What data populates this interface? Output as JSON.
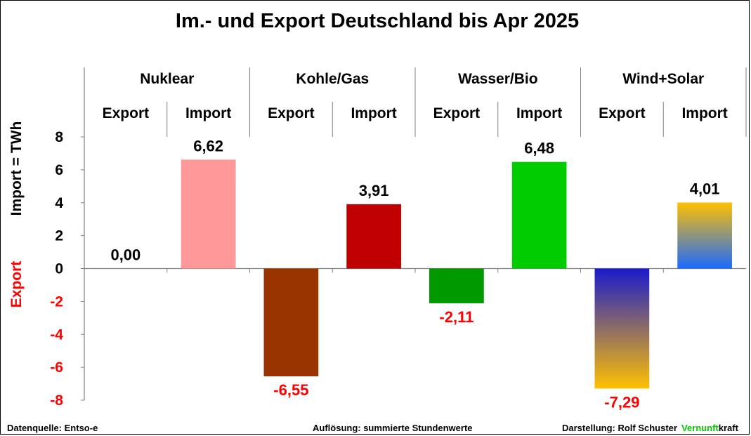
{
  "colors": {
    "positive_text": "#000000",
    "negative_text": "#ff0000",
    "brand_green": "#00cc00",
    "axis": "#808080"
  },
  "chart_data": {
    "type": "bar",
    "title": "Im.- und Export Deutschland  bis Apr 2025",
    "ylabel_positive": "Import =  TWh",
    "ylabel_negative": "Export",
    "ylim": [
      -8,
      8
    ],
    "yticks": [
      8,
      6,
      4,
      2,
      0,
      -2,
      -4,
      -6,
      -8
    ],
    "ytick_labels": [
      "8",
      "6",
      "4",
      "2",
      "0",
      "-2",
      "-4",
      "-6",
      "-8"
    ],
    "groups": [
      {
        "name": "Nuklear",
        "bars": [
          {
            "label": "Export",
            "value": 0.0,
            "value_label": "0,00",
            "color": "#ffffff",
            "gradient": null
          },
          {
            "label": "Import",
            "value": 6.62,
            "value_label": "6,62",
            "color": "#ff9999",
            "gradient": null
          }
        ]
      },
      {
        "name": "Kohle/Gas",
        "bars": [
          {
            "label": "Export",
            "value": -6.55,
            "value_label": "-6,55",
            "color": "#993300",
            "gradient": null
          },
          {
            "label": "Import",
            "value": 3.91,
            "value_label": "3,91",
            "color": "#c00000",
            "gradient": null
          }
        ]
      },
      {
        "name": "Wasser/Bio",
        "bars": [
          {
            "label": "Export",
            "value": -2.11,
            "value_label": "-2,11",
            "color": "#009900",
            "gradient": null
          },
          {
            "label": "Import",
            "value": 6.48,
            "value_label": "6,48",
            "color": "#00cc00",
            "gradient": null
          }
        ]
      },
      {
        "name": "Wind+Solar",
        "bars": [
          {
            "label": "Export",
            "value": -7.29,
            "value_label": "-7,29",
            "color": "#1a1acc",
            "gradient": [
              "#1a1acc",
              "#ffc000"
            ]
          },
          {
            "label": "Import",
            "value": 4.01,
            "value_label": "4,01",
            "color": "#ffc000",
            "gradient": [
              "#ffc000",
              "#1a6aff"
            ]
          }
        ]
      }
    ]
  },
  "footer": {
    "source": "Datenquelle: Entso-e",
    "resolution": "Auflösung: summierte Stundenwerte",
    "author": "Darstellung:  Rolf Schuster",
    "brand_part1": "Vernunft",
    "brand_part2": "kraft"
  }
}
